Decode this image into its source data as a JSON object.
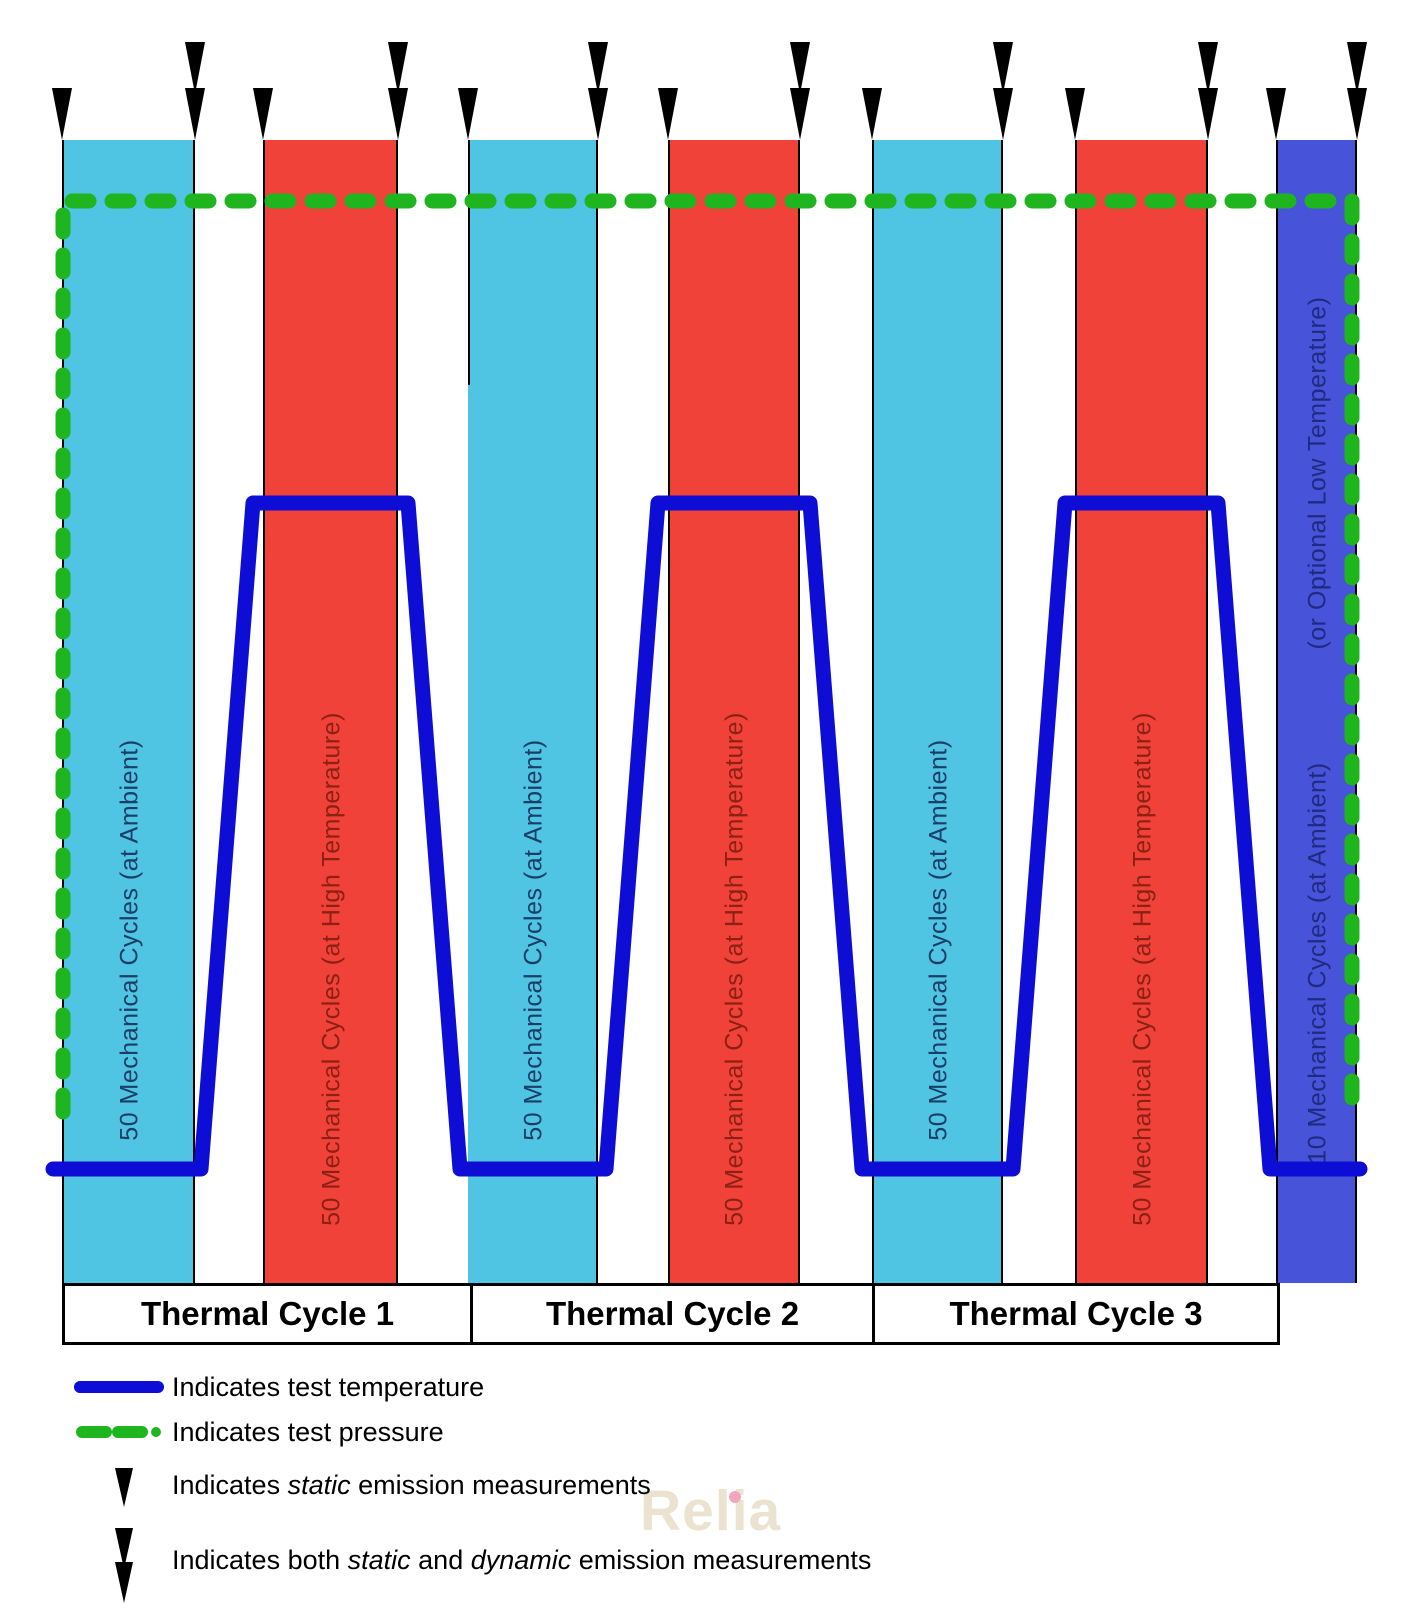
{
  "diagram": {
    "bars": [
      {
        "kind": "ambient",
        "label": "50 Mechanical Cycles (at Ambient)"
      },
      {
        "kind": "high_temp",
        "label": "50 Mechanical Cycles (at High Temperature)"
      },
      {
        "kind": "ambient",
        "label": "50 Mechanical Cycles (at Ambient)"
      },
      {
        "kind": "high_temp",
        "label": "50 Mechanical Cycles (at High Temperature)"
      },
      {
        "kind": "ambient",
        "label": "50 Mechanical Cycles (at Ambient)"
      },
      {
        "kind": "high_temp",
        "label": "50 Mechanical Cycles (at High Temperature)"
      },
      {
        "kind": "optional",
        "label": "10 Mechanical Cycles (at Ambient)",
        "label_secondary": "(or Optional Low Temperature)"
      }
    ],
    "cycle_labels": [
      "Thermal Cycle 1",
      "Thermal Cycle 2",
      "Thermal Cycle 3"
    ],
    "colors": {
      "ambient_bar": "#4fc4e3",
      "high_temp_bar": "#f1423a",
      "optional_bar": "#4753d8",
      "temperature_line": "#0d0dd6",
      "pressure_line": "#1fb51f",
      "ambient_label_text": "#1a3e66",
      "high_temp_label_text": "#8c2013",
      "optional_label_text": "#202a80",
      "measurement_arrow": "#000000"
    }
  },
  "legend": {
    "items": [
      {
        "symbol": "temperature-line",
        "label": "Indicates test temperature"
      },
      {
        "symbol": "pressure-line",
        "label": "Indicates test pressure"
      },
      {
        "symbol": "single-arrow",
        "parts": {
          "p0": "Indicates ",
          "p1": "static",
          "p2": " emission measurements"
        }
      },
      {
        "symbol": "double-arrow",
        "parts": {
          "p0": "Indicates both ",
          "p1": "static",
          "p2": " and ",
          "p3": "dynamic",
          "p4": " emission measurements"
        }
      }
    ]
  },
  "watermark": {
    "text": "Relia",
    "color": "#ece2d0",
    "dot_color": "#f2a6bc"
  }
}
